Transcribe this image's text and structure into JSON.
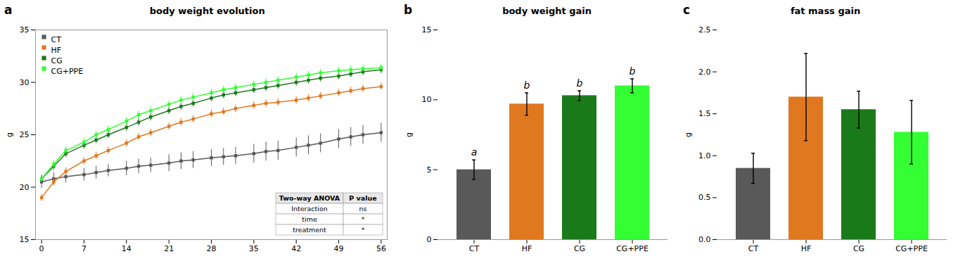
{
  "chart_data": [
    {
      "type": "line",
      "panel_label": "a",
      "title": "body weight evolution",
      "ylabel": "g",
      "x": [
        0,
        2,
        4,
        7,
        9,
        11,
        14,
        16,
        18,
        21,
        23,
        25,
        28,
        30,
        32,
        35,
        37,
        39,
        42,
        44,
        46,
        49,
        51,
        53,
        56
      ],
      "series": [
        {
          "name": "CT",
          "color": "#595959",
          "values": [
            20.5,
            20.8,
            21.0,
            21.2,
            21.4,
            21.6,
            21.8,
            22.0,
            22.1,
            22.3,
            22.5,
            22.6,
            22.8,
            22.9,
            23.0,
            23.2,
            23.4,
            23.5,
            23.8,
            24.0,
            24.2,
            24.6,
            24.8,
            25.0,
            25.2
          ],
          "errors": [
            0.6,
            0.6,
            0.6,
            0.6,
            0.6,
            0.6,
            0.7,
            0.7,
            0.7,
            0.8,
            0.8,
            0.8,
            0.8,
            0.8,
            0.8,
            0.9,
            0.9,
            0.9,
            0.9,
            0.9,
            0.9,
            0.9,
            0.9,
            0.9,
            0.9
          ]
        },
        {
          "name": "HF",
          "color": "#E07820",
          "values": [
            19.0,
            20.5,
            21.5,
            22.5,
            23.0,
            23.5,
            24.2,
            24.8,
            25.2,
            25.8,
            26.2,
            26.5,
            27.0,
            27.2,
            27.5,
            27.8,
            28.0,
            28.1,
            28.3,
            28.5,
            28.7,
            29.0,
            29.2,
            29.4,
            29.6
          ],
          "errors": [
            0.35,
            0.35,
            0.35,
            0.35,
            0.35,
            0.35,
            0.35,
            0.35,
            0.35,
            0.35,
            0.35,
            0.35,
            0.35,
            0.35,
            0.35,
            0.35,
            0.35,
            0.35,
            0.35,
            0.35,
            0.35,
            0.35,
            0.35,
            0.35,
            0.35
          ]
        },
        {
          "name": "CG",
          "color": "#1A7A1A",
          "values": [
            20.8,
            22.0,
            23.2,
            24.0,
            24.5,
            25.0,
            25.7,
            26.2,
            26.7,
            27.3,
            27.7,
            28.0,
            28.5,
            28.8,
            29.0,
            29.3,
            29.5,
            29.7,
            30.0,
            30.2,
            30.4,
            30.6,
            30.8,
            31.0,
            31.2
          ],
          "errors": [
            0.35,
            0.35,
            0.35,
            0.35,
            0.35,
            0.35,
            0.35,
            0.35,
            0.35,
            0.35,
            0.35,
            0.35,
            0.35,
            0.35,
            0.35,
            0.35,
            0.35,
            0.35,
            0.35,
            0.35,
            0.35,
            0.35,
            0.35,
            0.35,
            0.35
          ]
        },
        {
          "name": "CG+PPE",
          "color": "#33FF33",
          "values": [
            20.8,
            22.2,
            23.5,
            24.3,
            25.0,
            25.5,
            26.3,
            26.9,
            27.3,
            27.9,
            28.3,
            28.6,
            29.0,
            29.3,
            29.5,
            29.8,
            30.0,
            30.2,
            30.5,
            30.7,
            30.9,
            31.1,
            31.2,
            31.3,
            31.4
          ],
          "errors": [
            0.35,
            0.35,
            0.35,
            0.35,
            0.35,
            0.35,
            0.35,
            0.35,
            0.35,
            0.35,
            0.35,
            0.35,
            0.35,
            0.35,
            0.35,
            0.35,
            0.35,
            0.35,
            0.35,
            0.35,
            0.35,
            0.35,
            0.35,
            0.35,
            0.35
          ]
        }
      ],
      "xlim": [
        -1,
        57
      ],
      "xticks": [
        0,
        7,
        14,
        21,
        28,
        35,
        42,
        49,
        56
      ],
      "ylim": [
        15,
        35
      ],
      "yticks": [
        15,
        20,
        25,
        30,
        35
      ],
      "marker": "square",
      "legend": "upper left",
      "grid": false,
      "table": [
        [
          "Two-way ANOVA",
          "P value"
        ],
        [
          "Interaction",
          "ns"
        ],
        [
          "time",
          "*"
        ],
        [
          "treatment",
          "*"
        ]
      ]
    },
    {
      "type": "bar",
      "panel_label": "b",
      "title": "body weight gain",
      "ylabel": "g",
      "categories": [
        "CT",
        "HF",
        "CG",
        "CG+PPE"
      ],
      "values": [
        5.0,
        9.7,
        10.3,
        11.0
      ],
      "errors": [
        0.7,
        0.8,
        0.35,
        0.5
      ],
      "colors": [
        "#595959",
        "#E07820",
        "#1A7A1A",
        "#33FF33"
      ],
      "annotations": [
        "a",
        "b",
        "b",
        "b"
      ],
      "ylim": [
        0,
        15
      ],
      "yticks": [
        0,
        5,
        10,
        15
      ],
      "grid": false
    },
    {
      "type": "bar",
      "panel_label": "c",
      "title": "fat mass gain",
      "ylabel": "g",
      "categories": [
        "CT",
        "HF",
        "CG",
        "CG+PPE"
      ],
      "values": [
        0.85,
        1.7,
        1.55,
        1.28
      ],
      "errors": [
        0.18,
        0.52,
        0.22,
        0.38
      ],
      "colors": [
        "#595959",
        "#E07820",
        "#1A7A1A",
        "#33FF33"
      ],
      "ylim": [
        0.0,
        2.5
      ],
      "yticks": [
        {
          "value": 0,
          "label": "0.0"
        },
        0.5,
        {
          "value": 1,
          "label": "1.0"
        },
        1.5,
        {
          "value": 2,
          "label": "2.0"
        },
        2.5
      ],
      "grid": false
    }
  ]
}
